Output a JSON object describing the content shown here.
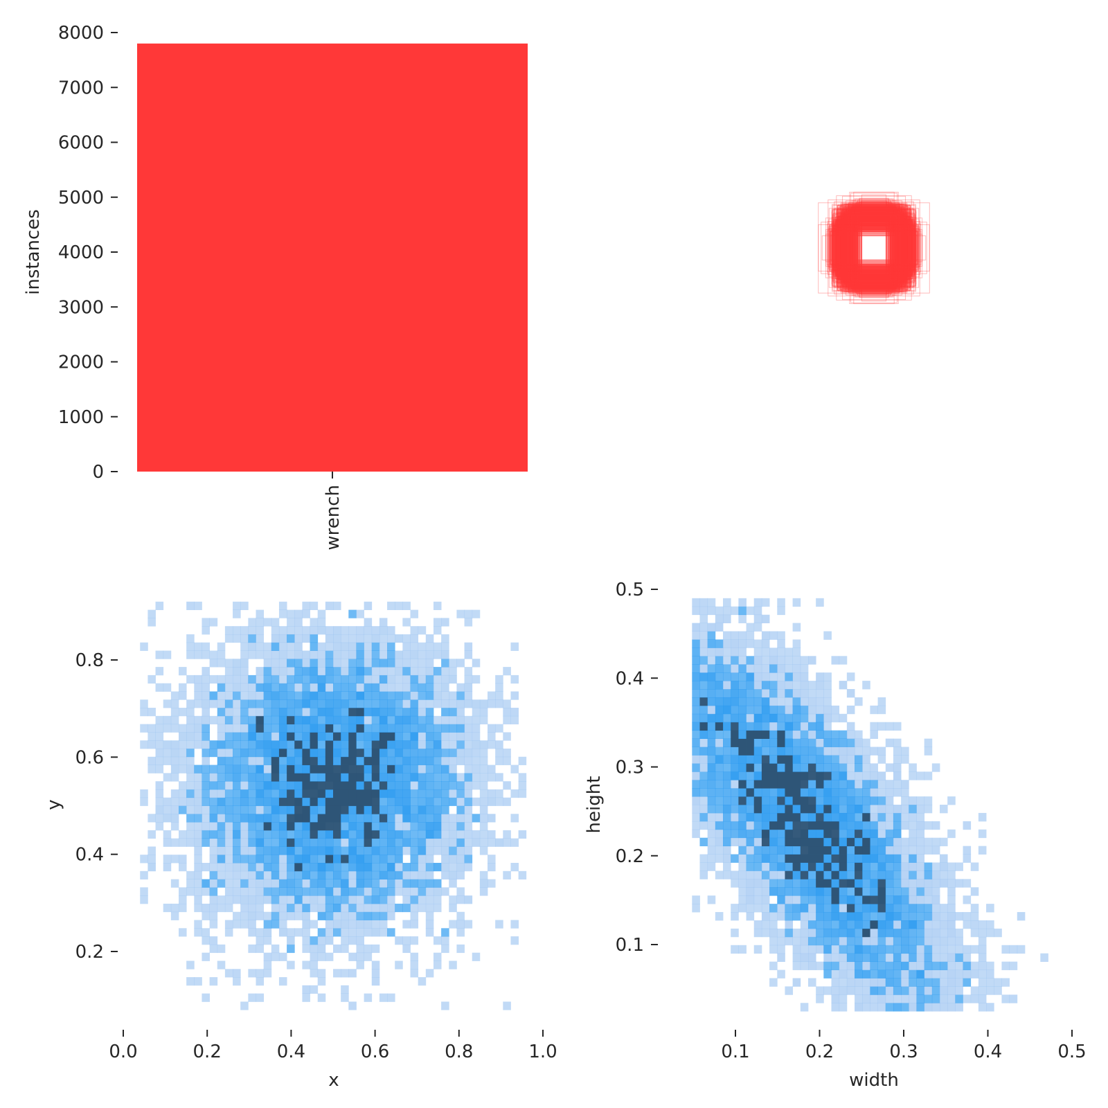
{
  "colors": {
    "bar": "#ff3838",
    "boxes": "#ff3838",
    "hist_light": "#95bff0",
    "hist_mid": "#2a9af0",
    "hist_dark": "#2e5577"
  },
  "chart_data": [
    {
      "type": "bar",
      "categories": [
        "wrench"
      ],
      "values": [
        7800
      ],
      "ylabel": "instances",
      "xlabel": "",
      "ylim": [
        0,
        8000
      ],
      "yticks": [
        "0",
        "1000",
        "2000",
        "3000",
        "4000",
        "5000",
        "6000",
        "7000",
        "8000"
      ],
      "grid": false
    },
    {
      "type": "scatter",
      "description_shown": "overlay of normalized bounding boxes centered in frame",
      "box_width_range": [
        0.05,
        0.48
      ],
      "box_height_range": [
        0.04,
        0.48
      ],
      "grid": false
    },
    {
      "type": "heatmap",
      "xlabel": "x",
      "ylabel": "y",
      "xlim": [
        0.0,
        1.0
      ],
      "ylim": [
        0.05,
        0.95
      ],
      "xticks": [
        "0.0",
        "0.2",
        "0.4",
        "0.6",
        "0.8",
        "1.0"
      ],
      "yticks": [
        "0.2",
        "0.4",
        "0.6",
        "0.8"
      ],
      "x_mean": 0.5,
      "y_mean": 0.55,
      "x_std": 0.17,
      "y_std": 0.15,
      "grid": false
    },
    {
      "type": "heatmap",
      "xlabel": "width",
      "ylabel": "height",
      "xlim": [
        0.0,
        0.5
      ],
      "ylim": [
        0.0,
        0.5
      ],
      "xticks": [
        "0.1",
        "0.2",
        "0.3",
        "0.4",
        "0.5"
      ],
      "yticks": [
        "0.1",
        "0.2",
        "0.3",
        "0.4",
        "0.5"
      ],
      "trend": "height decreases as width increases; densest near (0.12, 0.28) and (0.25, 0.13)",
      "grid": false
    }
  ]
}
